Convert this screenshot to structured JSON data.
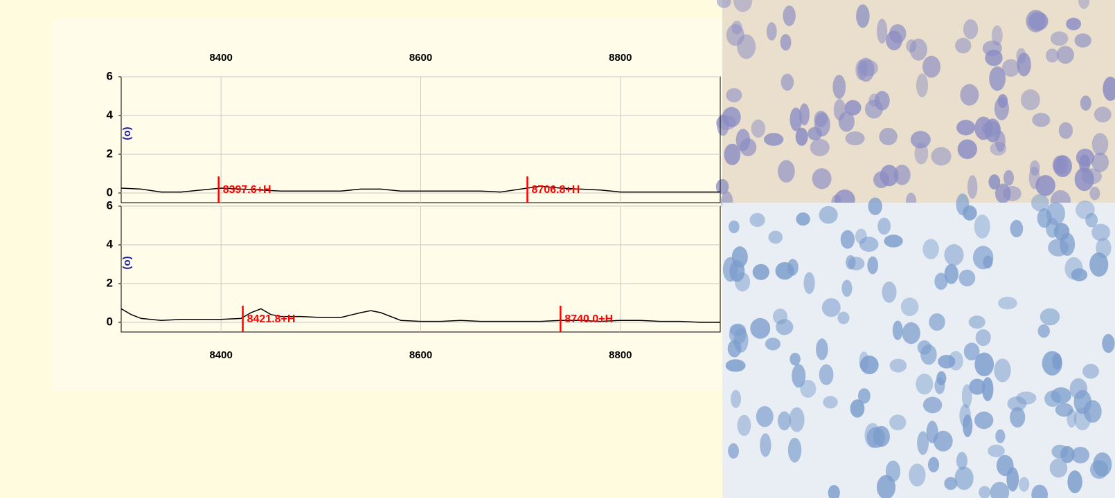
{
  "chart_data": [
    {
      "type": "line",
      "y_label": "(o)",
      "x": [
        8300,
        8320,
        8340,
        8360,
        8380,
        8400,
        8420,
        8440,
        8460,
        8480,
        8500,
        8520,
        8540,
        8560,
        8580,
        8600,
        8620,
        8640,
        8660,
        8680,
        8700,
        8720,
        8740,
        8760,
        8780,
        8800,
        8820,
        8840,
        8860,
        8880,
        8900
      ],
      "values": [
        0.25,
        0.2,
        0.05,
        0.05,
        0.15,
        0.25,
        0.2,
        0.15,
        0.1,
        0.1,
        0.1,
        0.1,
        0.2,
        0.2,
        0.1,
        0.1,
        0.1,
        0.1,
        0.1,
        0.05,
        0.2,
        0.35,
        0.25,
        0.2,
        0.15,
        0.05,
        0.05,
        0.05,
        0.05,
        0.05,
        0.05
      ],
      "color": "#000000",
      "xlim": [
        8300,
        8900
      ],
      "xticks": [
        8400,
        8600,
        8800
      ],
      "ylim": [
        -0.5,
        6
      ],
      "yticks": [
        0,
        2,
        4,
        6
      ],
      "grid": true,
      "annotations": [
        {
          "x": 8397.6,
          "label": "8397.6+H"
        },
        {
          "x": 8706.8,
          "label": "8706.8+H"
        }
      ],
      "annotation_color": "#ff0000"
    },
    {
      "type": "line",
      "y_label": "(o)",
      "x": [
        8300,
        8310,
        8320,
        8340,
        8360,
        8380,
        8400,
        8420,
        8430,
        8440,
        8450,
        8460,
        8480,
        8500,
        8520,
        8540,
        8550,
        8560,
        8580,
        8600,
        8620,
        8640,
        8660,
        8680,
        8700,
        8720,
        8740,
        8760,
        8780,
        8800,
        8820,
        8840,
        8860,
        8880,
        8900
      ],
      "values": [
        0.7,
        0.4,
        0.2,
        0.1,
        0.15,
        0.15,
        0.15,
        0.2,
        0.5,
        0.7,
        0.4,
        0.3,
        0.3,
        0.25,
        0.25,
        0.5,
        0.6,
        0.5,
        0.1,
        0.05,
        0.05,
        0.1,
        0.05,
        0.05,
        0.05,
        0.05,
        0.1,
        0.1,
        0.05,
        0.1,
        0.1,
        0.05,
        0.05,
        0,
        0
      ],
      "color": "#000000",
      "xlim": [
        8300,
        8900
      ],
      "xticks": [
        8400,
        8600,
        8800
      ],
      "ylim": [
        -0.5,
        6
      ],
      "yticks": [
        0,
        2,
        4,
        6
      ],
      "grid": true,
      "annotations": [
        {
          "x": 8421.8,
          "label": "8421.8+H"
        },
        {
          "x": 8740.0,
          "label": "8740.0+H"
        }
      ],
      "annotation_color": "#ff0000"
    }
  ]
}
